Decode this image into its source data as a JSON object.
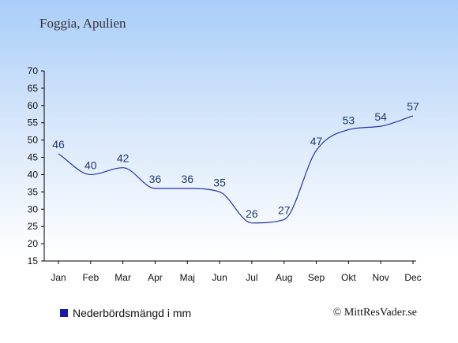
{
  "chart_data": {
    "type": "line",
    "title": "Foggia, Apulien",
    "categories": [
      "Jan",
      "Feb",
      "Mar",
      "Apr",
      "Maj",
      "Jun",
      "Jul",
      "Aug",
      "Sep",
      "Okt",
      "Nov",
      "Dec"
    ],
    "series": [
      {
        "name": "Nederbördsmängd i mm",
        "values": [
          46,
          40,
          42,
          36,
          36,
          35,
          26,
          27,
          47,
          53,
          54,
          57
        ],
        "color": "#2233aa"
      }
    ],
    "ylim": [
      15,
      70
    ],
    "yticks": [
      "15",
      "20",
      "25",
      "30",
      "35",
      "40",
      "45",
      "50",
      "55",
      "60",
      "65",
      "70"
    ],
    "grid": false,
    "legend_position": "bottom-left"
  },
  "legend": {
    "label": "Nederbördsmängd i mm",
    "swatch_color": "#1a1aa6"
  },
  "copyright": "© MittResVader.se"
}
